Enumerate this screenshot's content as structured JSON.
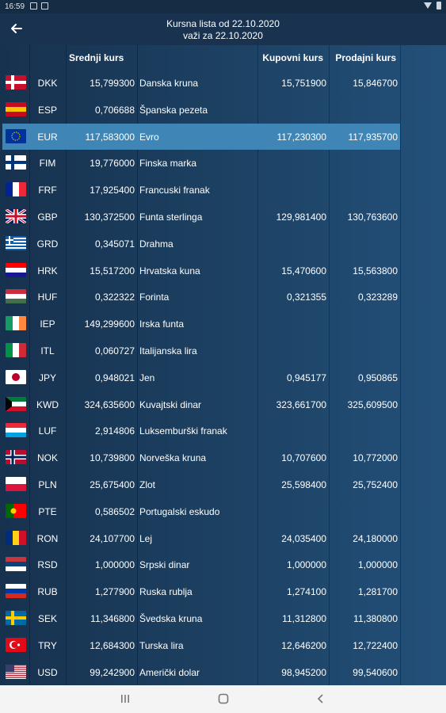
{
  "status": {
    "time": "16:59"
  },
  "header": {
    "title_line1": "Kursna lista od 22.10.2020",
    "title_line2": "važi za 22.10.2020"
  },
  "columns": {
    "mid": "Srednji kurs",
    "buy": "Kupovni kurs",
    "sell": "Prodajni kurs"
  },
  "rows": [
    {
      "code": "DKK",
      "mid": "15,799300",
      "name": "Danska kruna",
      "buy": "15,751900",
      "sell": "15,846700",
      "flag": "nordic",
      "c1": "#c8102e",
      "c2": "#ffffff"
    },
    {
      "code": "ESP",
      "mid": "0,706688",
      "name": "Španska pezeta",
      "buy": "",
      "sell": "",
      "flag": "h3",
      "c1": "#c60b1e",
      "c2": "#ffc400",
      "c3": "#c60b1e"
    },
    {
      "code": "EUR",
      "mid": "117,583000",
      "name": "Evro",
      "buy": "117,230300",
      "sell": "117,935700",
      "flag": "eu",
      "c1": "#003399",
      "c2": "#ffcc00",
      "selected": true
    },
    {
      "code": "FIM",
      "mid": "19,776000",
      "name": "Finska marka",
      "buy": "",
      "sell": "",
      "flag": "nordic",
      "c1": "#ffffff",
      "c2": "#003580"
    },
    {
      "code": "FRF",
      "mid": "17,925400",
      "name": "Francuski franak",
      "buy": "",
      "sell": "",
      "flag": "v3",
      "c1": "#002395",
      "c2": "#ffffff",
      "c3": "#ed2939"
    },
    {
      "code": "GBP",
      "mid": "130,372500",
      "name": "Funta sterlinga",
      "buy": "129,981400",
      "sell": "130,763600",
      "flag": "uk",
      "c1": "#012169",
      "c2": "#c8102e"
    },
    {
      "code": "GRD",
      "mid": "0,345071",
      "name": "Drahma",
      "buy": "",
      "sell": "",
      "flag": "gr",
      "c1": "#0d5eaf",
      "c2": "#ffffff"
    },
    {
      "code": "HRK",
      "mid": "15,517200",
      "name": "Hrvatska kuna",
      "buy": "15,470600",
      "sell": "15,563800",
      "flag": "h3",
      "c1": "#ff0000",
      "c2": "#ffffff",
      "c3": "#171796"
    },
    {
      "code": "HUF",
      "mid": "0,322322",
      "name": "Forinta",
      "buy": "0,321355",
      "sell": "0,323289",
      "flag": "h3",
      "c1": "#cd2a3e",
      "c2": "#ffffff",
      "c3": "#436f4d"
    },
    {
      "code": "IEP",
      "mid": "149,299600",
      "name": "Irska funta",
      "buy": "",
      "sell": "",
      "flag": "v3",
      "c1": "#169b62",
      "c2": "#ffffff",
      "c3": "#ff883e"
    },
    {
      "code": "ITL",
      "mid": "0,060727",
      "name": "Italijanska lira",
      "buy": "",
      "sell": "",
      "flag": "v3",
      "c1": "#009246",
      "c2": "#ffffff",
      "c3": "#ce2b37"
    },
    {
      "code": "JPY",
      "mid": "0,948021",
      "name": "Jen",
      "buy": "0,945177",
      "sell": "0,950865",
      "flag": "jp",
      "c1": "#ffffff",
      "c2": "#bc002d"
    },
    {
      "code": "KWD",
      "mid": "324,635600",
      "name": "Kuvajtski dinar",
      "buy": "323,661700",
      "sell": "325,609500",
      "flag": "kw",
      "c1": "#007a3d",
      "c2": "#ffffff",
      "c3": "#ce1126"
    },
    {
      "code": "LUF",
      "mid": "2,914806",
      "name": "Luksemburški franak",
      "buy": "",
      "sell": "",
      "flag": "h3",
      "c1": "#ed2939",
      "c2": "#ffffff",
      "c3": "#00a1de"
    },
    {
      "code": "NOK",
      "mid": "10,739800",
      "name": "Norveška kruna",
      "buy": "10,707600",
      "sell": "10,772000",
      "flag": "nordic2",
      "c1": "#ba0c2f",
      "c2": "#ffffff",
      "c3": "#00205b"
    },
    {
      "code": "PLN",
      "mid": "25,675400",
      "name": "Zlot",
      "buy": "25,598400",
      "sell": "25,752400",
      "flag": "h2",
      "c1": "#ffffff",
      "c2": "#dc143c"
    },
    {
      "code": "PTE",
      "mid": "0,586502",
      "name": "Portugalski eskudo",
      "buy": "",
      "sell": "",
      "flag": "pt",
      "c1": "#006600",
      "c2": "#ff0000"
    },
    {
      "code": "RON",
      "mid": "24,107700",
      "name": "Lej",
      "buy": "24,035400",
      "sell": "24,180000",
      "flag": "v3",
      "c1": "#002b7f",
      "c2": "#fcd116",
      "c3": "#ce1126"
    },
    {
      "code": "RSD",
      "mid": "1,000000",
      "name": "Srpski dinar",
      "buy": "1,000000",
      "sell": "1,000000",
      "flag": "h3",
      "c1": "#c6363c",
      "c2": "#0c4076",
      "c3": "#ffffff"
    },
    {
      "code": "RUB",
      "mid": "1,277900",
      "name": "Ruska rublja",
      "buy": "1,274100",
      "sell": "1,281700",
      "flag": "h3",
      "c1": "#ffffff",
      "c2": "#0039a6",
      "c3": "#d52b1e"
    },
    {
      "code": "SEK",
      "mid": "11,346800",
      "name": "Švedska kruna",
      "buy": "11,312800",
      "sell": "11,380800",
      "flag": "nordic",
      "c1": "#006aa7",
      "c2": "#fecc00"
    },
    {
      "code": "TRY",
      "mid": "12,684300",
      "name": "Turska lira",
      "buy": "12,646200",
      "sell": "12,722400",
      "flag": "tr",
      "c1": "#e30a17",
      "c2": "#ffffff"
    },
    {
      "code": "USD",
      "mid": "99,242900",
      "name": "Američki dolar",
      "buy": "98,945200",
      "sell": "99,540600",
      "flag": "us",
      "c1": "#b22234",
      "c2": "#ffffff",
      "c3": "#3c3b6e"
    }
  ]
}
